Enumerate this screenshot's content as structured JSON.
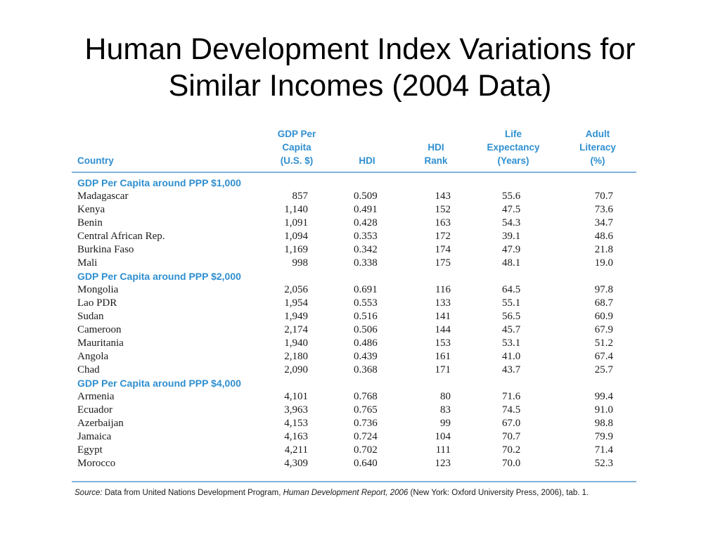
{
  "title": {
    "line1": "Human Development Index Variations for",
    "line2": "Similar Incomes (2004 Data)"
  },
  "table": {
    "headers": {
      "country": "Country",
      "gdp": [
        "GDP Per",
        "Capita",
        "(U.S. $)"
      ],
      "hdi": "HDI",
      "rank": [
        "HDI",
        "Rank"
      ],
      "life": [
        "Life",
        "Expectancy",
        "(Years)"
      ],
      "literacy": [
        "Adult",
        "Literacy",
        "(%)"
      ]
    },
    "groups": [
      {
        "title": "GDP Per Capita around PPP $1,000",
        "rows": [
          [
            "Madagascar",
            "857",
            "0.509",
            "143",
            "55.6",
            "70.7"
          ],
          [
            "Kenya",
            "1,140",
            "0.491",
            "152",
            "47.5",
            "73.6"
          ],
          [
            "Benin",
            "1,091",
            "0.428",
            "163",
            "54.3",
            "34.7"
          ],
          [
            "Central African Rep.",
            "1,094",
            "0.353",
            "172",
            "39.1",
            "48.6"
          ],
          [
            "Burkina Faso",
            "1,169",
            "0.342",
            "174",
            "47.9",
            "21.8"
          ],
          [
            "Mali",
            "998",
            "0.338",
            "175",
            "48.1",
            "19.0"
          ]
        ]
      },
      {
        "title": "GDP Per Capita around PPP $2,000",
        "rows": [
          [
            "Mongolia",
            "2,056",
            "0.691",
            "116",
            "64.5",
            "97.8"
          ],
          [
            "Lao PDR",
            "1,954",
            "0.553",
            "133",
            "55.1",
            "68.7"
          ],
          [
            "Sudan",
            "1,949",
            "0.516",
            "141",
            "56.5",
            "60.9"
          ],
          [
            "Cameroon",
            "2,174",
            "0.506",
            "144",
            "45.7",
            "67.9"
          ],
          [
            "Mauritania",
            "1,940",
            "0.486",
            "153",
            "53.1",
            "51.2"
          ],
          [
            "Angola",
            "2,180",
            "0.439",
            "161",
            "41.0",
            "67.4"
          ],
          [
            "Chad",
            "2,090",
            "0.368",
            "171",
            "43.7",
            "25.7"
          ]
        ]
      },
      {
        "title": "GDP Per Capita around PPP $4,000",
        "rows": [
          [
            "Armenia",
            "4,101",
            "0.768",
            "80",
            "71.6",
            "99.4"
          ],
          [
            "Ecuador",
            "3,963",
            "0.765",
            "83",
            "74.5",
            "91.0"
          ],
          [
            "Azerbaijan",
            "4,153",
            "0.736",
            "99",
            "67.0",
            "98.8"
          ],
          [
            "Jamaica",
            "4,163",
            "0.724",
            "104",
            "70.7",
            "79.9"
          ],
          [
            "Egypt",
            "4,211",
            "0.702",
            "111",
            "70.2",
            "71.4"
          ],
          [
            "Morocco",
            "4,309",
            "0.640",
            "123",
            "70.0",
            "52.3"
          ]
        ]
      }
    ]
  },
  "source": {
    "label": "Source:",
    "text1": " Data from United Nations Development Program, ",
    "report": "Human Development Report, 2006",
    "text2": " (New York: Oxford University Press, 2006), tab. 1."
  },
  "colors": {
    "accent": "#2f8fd0",
    "rule": "#7fb2dd",
    "text": "#1a1a1a"
  }
}
